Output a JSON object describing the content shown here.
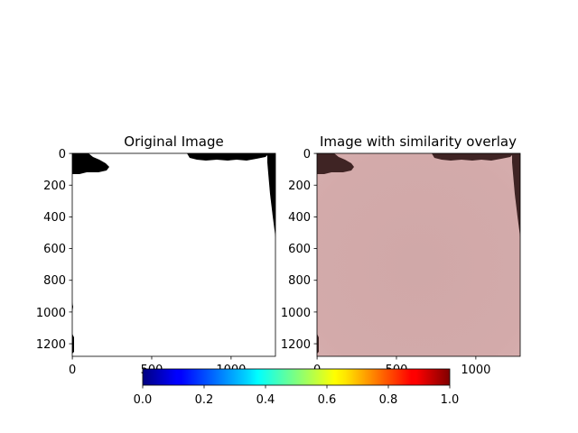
{
  "chart_data": [
    {
      "type": "heatmap",
      "title": "Original Image",
      "xlabel": "",
      "ylabel": "",
      "xlim": [
        0,
        1280
      ],
      "ylim": [
        1280,
        0
      ],
      "x_ticks": [
        0,
        500,
        1000
      ],
      "y_ticks": [
        0,
        200,
        400,
        600,
        800,
        1000,
        1200
      ],
      "x_tick_labels": [
        "0",
        "500",
        "1000"
      ],
      "y_tick_labels": [
        "0",
        "200",
        "400",
        "600",
        "800",
        "1000",
        "1200"
      ],
      "grid": false,
      "background_color": "#ffffff",
      "mask_color": "#000000"
    },
    {
      "type": "heatmap",
      "title": "Image with similarity overlay",
      "xlabel": "",
      "ylabel": "",
      "xlim": [
        0,
        1280
      ],
      "ylim": [
        1280,
        0
      ],
      "x_ticks": [
        0,
        500,
        1000
      ],
      "y_ticks": [
        0,
        200,
        400,
        600,
        800,
        1000,
        1200
      ],
      "x_tick_labels": [
        "0",
        "500",
        "1000"
      ],
      "y_tick_labels": [
        "0",
        "200",
        "400",
        "600",
        "800",
        "1000",
        "1200"
      ],
      "grid": false,
      "overlay_color": "#d3aaaa",
      "mask_color": "#3f2424",
      "colormap": "jet"
    }
  ],
  "colorbar": {
    "colormap": "jet",
    "range": [
      0.0,
      1.0
    ],
    "orientation": "horizontal",
    "ticks": [
      0.0,
      0.2,
      0.4,
      0.6,
      0.8,
      1.0
    ],
    "tick_labels": [
      "0.0",
      "0.2",
      "0.4",
      "0.6",
      "0.8",
      "1.0"
    ]
  }
}
